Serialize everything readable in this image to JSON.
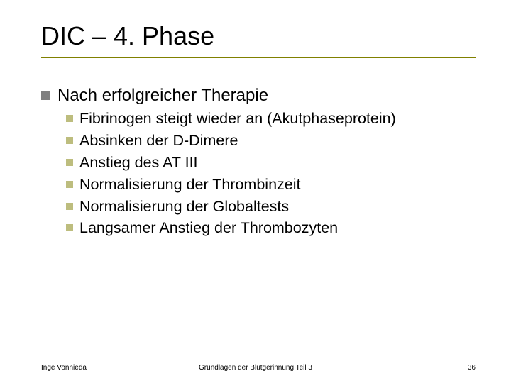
{
  "slide": {
    "title": "DIC – 4. Phase",
    "title_fontsize": 36,
    "title_color": "#000000",
    "underline_color": "#808000",
    "background_color": "#ffffff",
    "bullet_lvl1_color": "#808080",
    "bullet_lvl1_size": 13,
    "bullet_lvl2_color": "#bdbd7e",
    "bullet_lvl2_size": 10,
    "body_fontsize_lvl1": 24,
    "body_fontsize_lvl2": 21.5,
    "lvl1": {
      "text": "Nach erfolgreicher Therapie",
      "children": [
        "Fibrinogen steigt wieder an (Akutphaseprotein)",
        "Absinken der D-Dimere",
        "Anstieg des AT III",
        "Normalisierung der Thrombinzeit",
        "Normalisierung der Globaltests",
        "Langsamer Anstieg der Thrombozyten"
      ]
    }
  },
  "footer": {
    "left": "Inge Vonnieda",
    "center": "Grundlagen der Blutgerinnung Teil 3",
    "page": "36",
    "fontsize": 10,
    "color": "#000000"
  }
}
